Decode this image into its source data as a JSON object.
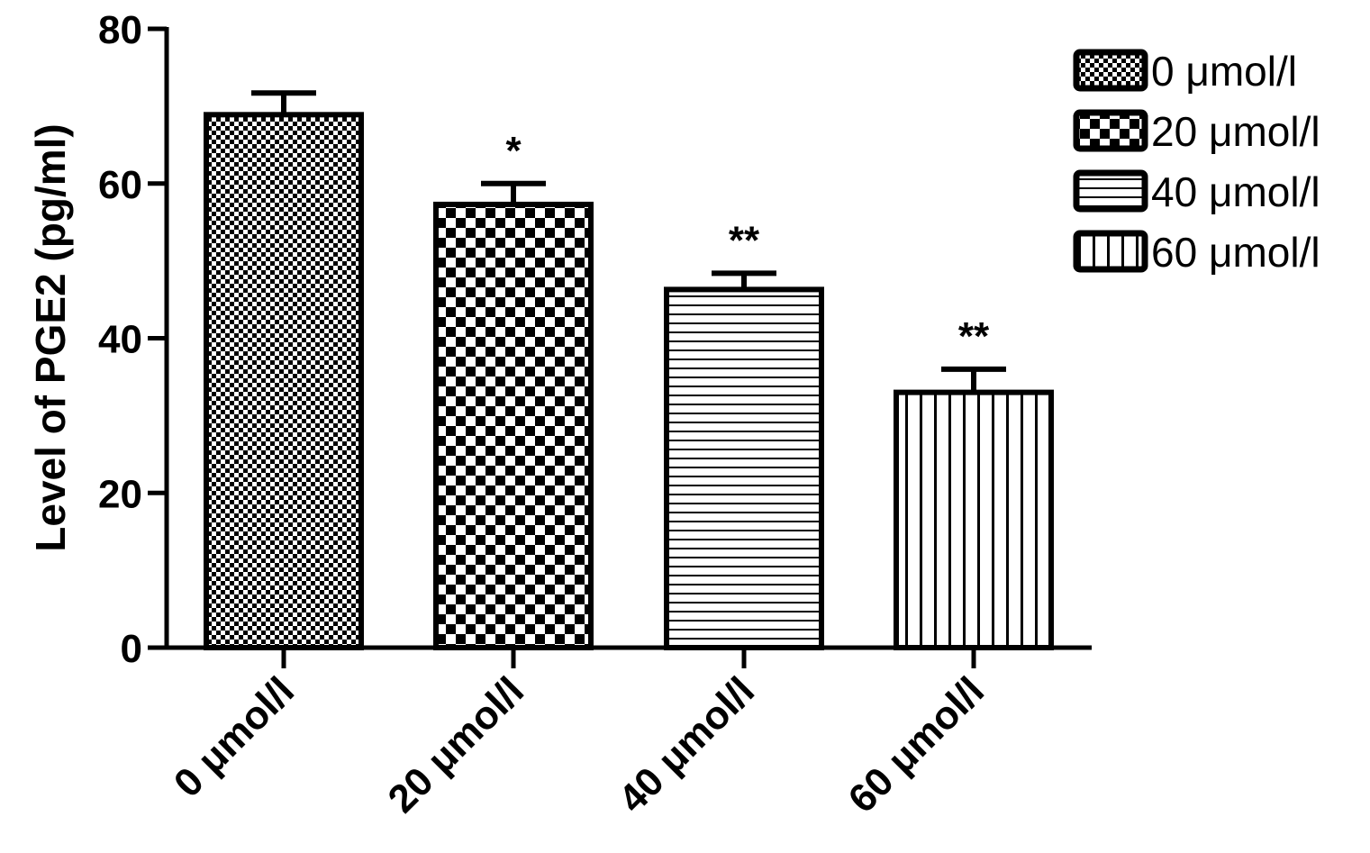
{
  "chart_data": {
    "type": "bar",
    "title": "",
    "xlabel": "",
    "ylabel": "Level of PGE2 (pg/ml)",
    "ylim": [
      0,
      80
    ],
    "yticks": [
      "0",
      "20",
      "40",
      "60",
      "80"
    ],
    "categories": [
      "0 μmol/l",
      "20 μmol/l",
      "40 μmol/l",
      "60 μmol/l"
    ],
    "values": [
      68.9,
      57.3,
      46.3,
      33.0
    ],
    "error_upper": [
      71.7,
      60.0,
      48.4,
      36.0
    ],
    "annotations": [
      "",
      "*",
      "**",
      "**"
    ],
    "patterns": [
      "fine-checker",
      "coarse-checker",
      "horizontal-lines",
      "vertical-lines"
    ],
    "legend": {
      "position": "top-right",
      "entries": [
        "0 μmol/l",
        "20 μmol/l",
        "40 μmol/l",
        "60 μmol/l"
      ]
    },
    "grid": false,
    "colors": {
      "stroke": "#000000",
      "fill": "#ffffff"
    }
  }
}
